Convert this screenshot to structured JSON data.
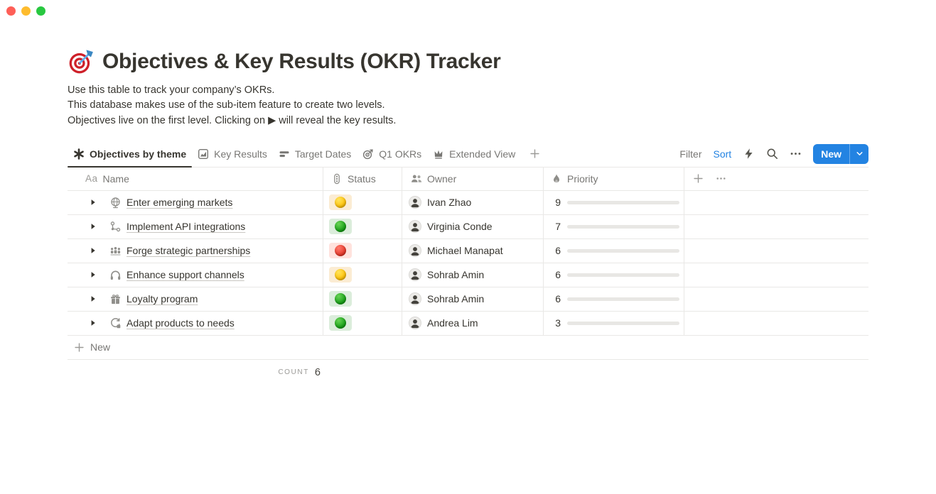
{
  "window": {
    "controls": [
      "close",
      "minimize",
      "zoom"
    ]
  },
  "page": {
    "icon": "dart-target",
    "title": "Objectives & Key Results (OKR) Tracker",
    "description_lines": [
      "Use this table to track your company’s OKRs.",
      "This database makes use of the sub-item feature to create two levels.",
      "Objectives live on the first level. Clicking on ▶ will reveal the key results."
    ]
  },
  "toolbar": {
    "tabs": [
      {
        "label": "Objectives by theme",
        "icon": "asterisk",
        "active": true
      },
      {
        "label": "Key Results",
        "icon": "bar-chart",
        "active": false
      },
      {
        "label": "Target Dates",
        "icon": "timeline",
        "active": false
      },
      {
        "label": "Q1 OKRs",
        "icon": "target",
        "active": false
      },
      {
        "label": "Extended View",
        "icon": "crown",
        "active": false
      }
    ],
    "add_view_icon": "plus",
    "filter_label": "Filter",
    "sort_label": "Sort",
    "action_icons": [
      "bolt",
      "search",
      "dots"
    ],
    "new_button": {
      "label": "New",
      "chevron_icon": "chevron-down"
    }
  },
  "table": {
    "priority_max": 10,
    "columns": [
      {
        "label": "Name",
        "icon": "text-type",
        "icon_text": "Aa"
      },
      {
        "label": "Status",
        "icon": "traffic-light"
      },
      {
        "label": "Owner",
        "icon": "people"
      },
      {
        "label": "Priority",
        "icon": "flame"
      }
    ],
    "add_column_icon": "plus",
    "more_icon": "dots",
    "rows": [
      {
        "icon": "globe",
        "name": "Enter emerging markets",
        "status": "yellow",
        "owner": "Ivan Zhao",
        "priority": 9
      },
      {
        "icon": "workflow",
        "name": "Implement API integrations",
        "status": "green",
        "owner": "Virginia Conde",
        "priority": 7
      },
      {
        "icon": "meeting",
        "name": "Forge strategic partnerships",
        "status": "red",
        "owner": "Michael Manapat",
        "priority": 6
      },
      {
        "icon": "headphones",
        "name": "Enhance support channels",
        "status": "yellow",
        "owner": "Sohrab Amin",
        "priority": 6
      },
      {
        "icon": "gift",
        "name": "Loyalty program",
        "status": "green",
        "owner": "Sohrab Amin",
        "priority": 6
      },
      {
        "icon": "adapt",
        "name": "Adapt products to needs",
        "status": "green",
        "owner": "Andrea Lim",
        "priority": 3
      }
    ],
    "new_row_label": "New",
    "footer": {
      "count_label": "COUNT",
      "count_value": "6"
    }
  },
  "colors": {
    "accent_blue": "#2383E2",
    "priority_bar_green": "#548164",
    "status_yellow": "#FFC40C",
    "status_green": "#1FA117",
    "status_red": "#E8392A",
    "status_bg_yellow": "#FBECD3",
    "status_bg_green": "#DBEDDB",
    "status_bg_red": "#FFE2DD"
  }
}
